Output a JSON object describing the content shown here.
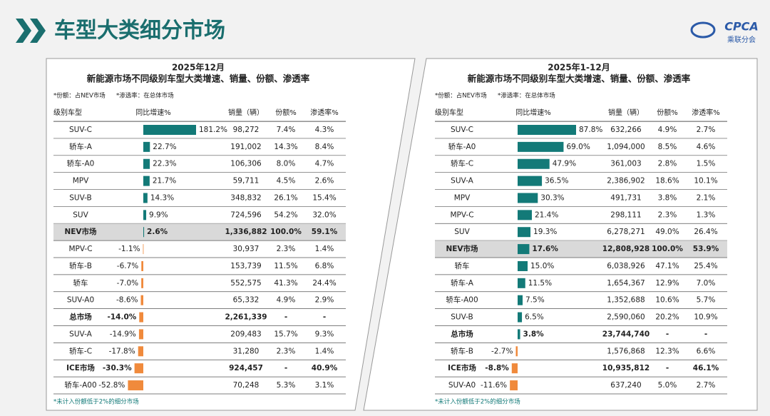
{
  "header": {
    "title": "车型大类细分市场",
    "logo": {
      "name": "CPCA",
      "subtitle": "乘联分会"
    }
  },
  "panels": [
    {
      "title": "2025年12月",
      "subtitle": "新能源市场不同级别车型大类增速、销量、份额、渗透率",
      "notes": [
        "*份额：占NEV市场",
        "*渗透率：在总体市场"
      ],
      "columns": [
        "级别车型",
        "同比增速%",
        "销量（辆）",
        "份额%",
        "渗透率%"
      ],
      "rows": [
        {
          "name": "SUV-C",
          "growth": 181.2,
          "growth_label": "181.2%",
          "sales": "98,272",
          "share": "7.4%",
          "penetration": "4.3%"
        },
        {
          "name": "轿车-A",
          "growth": 22.7,
          "growth_label": "22.7%",
          "sales": "191,002",
          "share": "14.3%",
          "penetration": "8.4%"
        },
        {
          "name": "轿车-A0",
          "growth": 22.3,
          "growth_label": "22.3%",
          "sales": "106,306",
          "share": "8.0%",
          "penetration": "4.7%"
        },
        {
          "name": "MPV",
          "growth": 21.7,
          "growth_label": "21.7%",
          "sales": "59,711",
          "share": "4.5%",
          "penetration": "2.6%"
        },
        {
          "name": "SUV-B",
          "growth": 14.3,
          "growth_label": "14.3%",
          "sales": "348,832",
          "share": "26.1%",
          "penetration": "15.4%"
        },
        {
          "name": "SUV",
          "growth": 9.9,
          "growth_label": "9.9%",
          "sales": "724,596",
          "share": "54.2%",
          "penetration": "32.0%"
        },
        {
          "name": "NEV市场",
          "growth": 2.6,
          "growth_label": "2.6%",
          "sales": "1,336,882",
          "share": "100.0%",
          "penetration": "59.1%",
          "bold": true,
          "highlight": true
        },
        {
          "name": "MPV-C",
          "growth": -1.1,
          "growth_label": "-1.1%",
          "sales": "30,937",
          "share": "2.3%",
          "penetration": "1.4%"
        },
        {
          "name": "轿车-B",
          "growth": -6.7,
          "growth_label": "-6.7%",
          "sales": "153,739",
          "share": "11.5%",
          "penetration": "6.8%"
        },
        {
          "name": "轿车",
          "growth": -7.0,
          "growth_label": "-7.0%",
          "sales": "552,575",
          "share": "41.3%",
          "penetration": "24.4%"
        },
        {
          "name": "SUV-A0",
          "growth": -8.6,
          "growth_label": "-8.6%",
          "sales": "65,332",
          "share": "4.9%",
          "penetration": "2.9%"
        },
        {
          "name": "总市场",
          "growth": -14.0,
          "growth_label": "-14.0%",
          "sales": "2,261,339",
          "share": "-",
          "penetration": "-",
          "bold": true
        },
        {
          "name": "SUV-A",
          "growth": -14.9,
          "growth_label": "-14.9%",
          "sales": "209,483",
          "share": "15.7%",
          "penetration": "9.3%"
        },
        {
          "name": "轿车-C",
          "growth": -17.8,
          "growth_label": "-17.8%",
          "sales": "31,280",
          "share": "2.3%",
          "penetration": "1.4%"
        },
        {
          "name": "ICE市场",
          "growth": -30.3,
          "growth_label": "-30.3%",
          "sales": "924,457",
          "share": "-",
          "penetration": "40.9%",
          "bold": true
        },
        {
          "name": "轿车-A00",
          "growth": -52.8,
          "growth_label": "-52.8%",
          "sales": "70,248",
          "share": "5.3%",
          "penetration": "3.1%"
        }
      ],
      "footnote": "*未计入份额低于2%的细分市场"
    },
    {
      "title": "2025年1-12月",
      "subtitle": "新能源市场不同级别车型大类增速、销量、份额、渗透率",
      "notes": [
        "*份额：占NEV市场",
        "*渗透率：在总体市场"
      ],
      "columns": [
        "级别车型",
        "同比增速%",
        "销量（辆）",
        "份额%",
        "渗透率%"
      ],
      "rows": [
        {
          "name": "SUV-C",
          "growth": 87.8,
          "growth_label": "87.8%",
          "sales": "632,266",
          "share": "4.9%",
          "penetration": "2.7%"
        },
        {
          "name": "轿车-A0",
          "growth": 69.0,
          "growth_label": "69.0%",
          "sales": "1,094,000",
          "share": "8.5%",
          "penetration": "4.6%"
        },
        {
          "name": "轿车-C",
          "growth": 47.9,
          "growth_label": "47.9%",
          "sales": "361,003",
          "share": "2.8%",
          "penetration": "1.5%"
        },
        {
          "name": "SUV-A",
          "growth": 36.5,
          "growth_label": "36.5%",
          "sales": "2,386,902",
          "share": "18.6%",
          "penetration": "10.1%"
        },
        {
          "name": "MPV",
          "growth": 30.3,
          "growth_label": "30.3%",
          "sales": "491,731",
          "share": "3.8%",
          "penetration": "2.1%"
        },
        {
          "name": "MPV-C",
          "growth": 21.4,
          "growth_label": "21.4%",
          "sales": "298,111",
          "share": "2.3%",
          "penetration": "1.3%"
        },
        {
          "name": "SUV",
          "growth": 19.3,
          "growth_label": "19.3%",
          "sales": "6,278,271",
          "share": "49.0%",
          "penetration": "26.4%"
        },
        {
          "name": "NEV市场",
          "growth": 17.6,
          "growth_label": "17.6%",
          "sales": "12,808,928",
          "share": "100.0%",
          "penetration": "53.9%",
          "bold": true,
          "highlight": true
        },
        {
          "name": "轿车",
          "growth": 15.0,
          "growth_label": "15.0%",
          "sales": "6,038,926",
          "share": "47.1%",
          "penetration": "25.4%"
        },
        {
          "name": "轿车-A",
          "growth": 11.5,
          "growth_label": "11.5%",
          "sales": "1,654,367",
          "share": "12.9%",
          "penetration": "7.0%"
        },
        {
          "name": "轿车-A00",
          "growth": 7.5,
          "growth_label": "7.5%",
          "sales": "1,352,688",
          "share": "10.6%",
          "penetration": "5.7%"
        },
        {
          "name": "SUV-B",
          "growth": 6.5,
          "growth_label": "6.5%",
          "sales": "2,590,060",
          "share": "20.2%",
          "penetration": "10.9%"
        },
        {
          "name": "总市场",
          "growth": 3.8,
          "growth_label": "3.8%",
          "sales": "23,744,740",
          "share": "-",
          "penetration": "-",
          "bold": true
        },
        {
          "name": "轿车-B",
          "growth": -2.7,
          "growth_label": "-2.7%",
          "sales": "1,576,868",
          "share": "12.3%",
          "penetration": "6.6%"
        },
        {
          "name": "ICE市场",
          "growth": -8.8,
          "growth_label": "-8.8%",
          "sales": "10,935,812",
          "share": "-",
          "penetration": "46.1%",
          "bold": true
        },
        {
          "name": "SUV-A0",
          "growth": -11.6,
          "growth_label": "-11.6%",
          "sales": "637,240",
          "share": "5.0%",
          "penetration": "2.7%"
        }
      ],
      "footnote": "*未计入份额低于2%的细分市场"
    }
  ]
}
